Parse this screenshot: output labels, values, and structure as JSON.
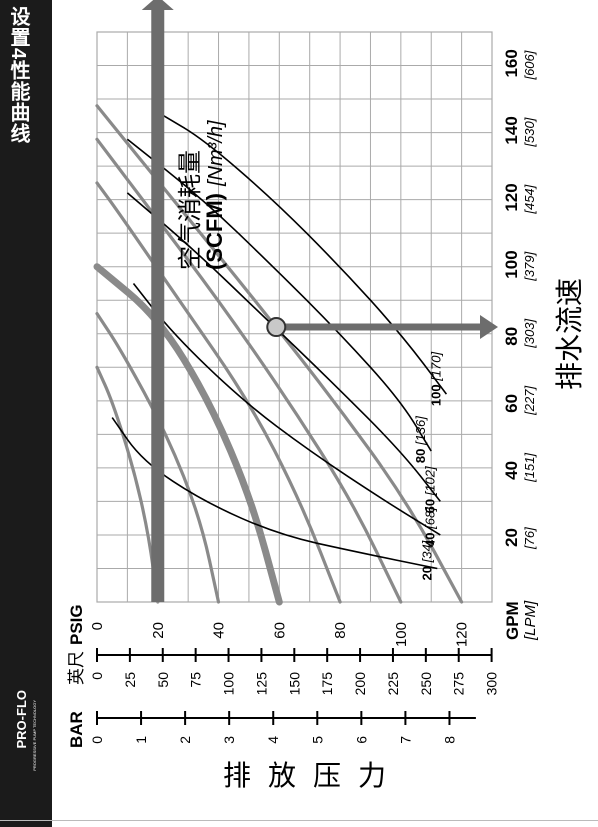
{
  "page": {
    "title": "设置4性能曲线",
    "brand": "PRO-FLO",
    "brand_mark": "X",
    "brand_tagline": "PROGRESSIVE PUMP TECHNOLOGY"
  },
  "colors": {
    "grid": "#aaaaaa",
    "pressure_curve": "#8a8a8a",
    "air_curve": "#000000",
    "operating_line": "#6d6d6d",
    "operating_point": "#c8c8c8"
  },
  "labels": {
    "flow_axis_unit": "GPM",
    "flow_axis_unit_alt": "[LPM]",
    "flow_axis_title": "排水流速",
    "pressure_psig_unit": "PSIG",
    "pressure_ft_unit": "英尺",
    "pressure_bar_unit": "BAR",
    "pressure_title": "排放压力",
    "air_title": "空气消耗量",
    "air_unit": "(SCFM)",
    "air_unit_alt": "[Nm³/h]"
  },
  "chart_data": {
    "type": "line",
    "title": "设置4性能曲线",
    "xlabel": "排水流速",
    "ylabel": "排放压力",
    "x_unit": "GPM",
    "y_unit": "PSIG",
    "xlim": [
      0,
      170
    ],
    "ylim": [
      0,
      130
    ],
    "grid": true,
    "x_ticks": [
      {
        "v": 20,
        "gpm": "20",
        "lpm": "[76]"
      },
      {
        "v": 40,
        "gpm": "40",
        "lpm": "[151]"
      },
      {
        "v": 60,
        "gpm": "60",
        "lpm": "[227]"
      },
      {
        "v": 80,
        "gpm": "80",
        "lpm": "[303]"
      },
      {
        "v": 100,
        "gpm": "100",
        "lpm": "[379]"
      },
      {
        "v": 120,
        "gpm": "120",
        "lpm": "[454]"
      },
      {
        "v": 140,
        "gpm": "140",
        "lpm": "[530]"
      },
      {
        "v": 160,
        "gpm": "160",
        "lpm": "[606]"
      }
    ],
    "psig_ticks": [
      "0",
      "20",
      "40",
      "60",
      "80",
      "100",
      "120"
    ],
    "ft_ticks": [
      "0",
      "25",
      "50",
      "75",
      "100",
      "125",
      "150",
      "175",
      "200",
      "225",
      "250",
      "275",
      "300"
    ],
    "bar_ticks": [
      "0",
      "1",
      "2",
      "3",
      "4",
      "5",
      "6",
      "7",
      "8"
    ],
    "pressure_curves": [
      {
        "inlet_psig": 20,
        "points": [
          [
            0,
            20
          ],
          [
            20,
            17
          ],
          [
            40,
            12
          ],
          [
            60,
            5
          ],
          [
            70,
            0
          ]
        ]
      },
      {
        "inlet_psig": 40,
        "points": [
          [
            0,
            40
          ],
          [
            25,
            34
          ],
          [
            50,
            23
          ],
          [
            75,
            8
          ],
          [
            86,
            0
          ]
        ]
      },
      {
        "inlet_psig": 60,
        "points": [
          [
            0,
            60
          ],
          [
            30,
            51
          ],
          [
            60,
            37
          ],
          [
            85,
            20
          ],
          [
            100,
            0
          ]
        ]
      },
      {
        "inlet_psig": 80,
        "points": [
          [
            0,
            80
          ],
          [
            30,
            67
          ],
          [
            60,
            50
          ],
          [
            90,
            27
          ],
          [
            115,
            8
          ],
          [
            125,
            0
          ]
        ]
      },
      {
        "inlet_psig": 100,
        "points": [
          [
            0,
            100
          ],
          [
            30,
            84
          ],
          [
            60,
            63
          ],
          [
            90,
            40
          ],
          [
            120,
            15
          ],
          [
            138,
            0
          ]
        ]
      },
      {
        "inlet_psig": 120,
        "points": [
          [
            0,
            120
          ],
          [
            30,
            102
          ],
          [
            60,
            78
          ],
          [
            90,
            52
          ],
          [
            120,
            25
          ],
          [
            148,
            0
          ]
        ]
      }
    ],
    "air_curves": [
      {
        "scfm": "20",
        "nm3h": "[34]",
        "points": [
          [
            10,
            112
          ],
          [
            15,
            85
          ],
          [
            20,
            60
          ],
          [
            30,
            35
          ],
          [
            42,
            15
          ],
          [
            55,
            5
          ]
        ]
      },
      {
        "scfm": "40",
        "nm3h": "[68]",
        "points": [
          [
            20,
            113
          ],
          [
            30,
            95
          ],
          [
            45,
            70
          ],
          [
            60,
            48
          ],
          [
            80,
            25
          ],
          [
            95,
            12
          ]
        ]
      },
      {
        "scfm": "60",
        "nm3h": "[102]",
        "points": [
          [
            30,
            113
          ],
          [
            45,
            100
          ],
          [
            65,
            78
          ],
          [
            85,
            55
          ],
          [
            105,
            32
          ],
          [
            122,
            10
          ]
        ]
      },
      {
        "scfm": "80",
        "nm3h": "[136]",
        "points": [
          [
            45,
            110
          ],
          [
            60,
            100
          ],
          [
            80,
            80
          ],
          [
            100,
            58
          ],
          [
            120,
            35
          ],
          [
            138,
            10
          ]
        ]
      },
      {
        "scfm": "100",
        "nm3h": "[170]",
        "points": [
          [
            62,
            115
          ],
          [
            80,
            100
          ],
          [
            100,
            80
          ],
          [
            120,
            58
          ],
          [
            138,
            35
          ],
          [
            145,
            22
          ]
        ]
      }
    ],
    "operating_line_psig": 20,
    "operating_flow_gpm": 82,
    "operating_point": [
      82,
      59
    ]
  }
}
